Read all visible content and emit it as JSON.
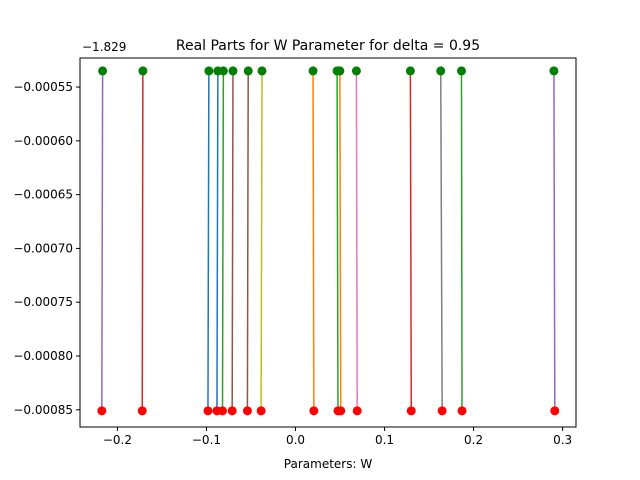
{
  "chart_data": {
    "type": "line",
    "title": "Real Parts for W Parameter for delta = 0.95",
    "xlabel": "Parameters: W",
    "ylabel": "",
    "offset_label": "−1.829",
    "xlim": [
      -0.242,
      0.315
    ],
    "ylim": [
      -0.000866,
      -0.000523
    ],
    "xticks": [
      -0.2,
      -0.1,
      0.0,
      0.1,
      0.2,
      0.3
    ],
    "xtick_labels": [
      "−0.2",
      "−0.1",
      "0.0",
      "0.1",
      "0.2",
      "0.3"
    ],
    "yticks": [
      -0.00055,
      -0.0006,
      -0.00065,
      -0.0007,
      -0.00075,
      -0.0008,
      -0.00085
    ],
    "ytick_labels": [
      "−0.00055",
      "−0.00060",
      "−0.00065",
      "−0.00070",
      "−0.00075",
      "−0.00080",
      "−0.00085"
    ],
    "grid": false,
    "top_marker_color": "#008000",
    "bottom_marker_color": "#ff0000",
    "series": [
      {
        "color": "#9467bd",
        "x": [
          -0.2166,
          -0.2175
        ],
        "y": [
          -0.000535,
          -0.000851
        ]
      },
      {
        "color": "#d62728",
        "x": [
          -0.1714,
          -0.1721
        ],
        "y": [
          -0.000535,
          -0.000851
        ]
      },
      {
        "color": "#1f77b4",
        "x": [
          -0.0973,
          -0.0983
        ],
        "y": [
          -0.000535,
          -0.000851
        ]
      },
      {
        "color": "#1f77b4",
        "x": [
          -0.0872,
          -0.0882
        ],
        "y": [
          -0.000535,
          -0.000851
        ]
      },
      {
        "color": "#2ca02c",
        "x": [
          -0.081,
          -0.082
        ],
        "y": [
          -0.000535,
          -0.000851
        ]
      },
      {
        "color": "#8c564b",
        "x": [
          -0.0702,
          -0.0711
        ],
        "y": [
          -0.000535,
          -0.000851
        ]
      },
      {
        "color": "#8c564b",
        "x": [
          -0.0531,
          -0.054
        ],
        "y": [
          -0.000535,
          -0.000851
        ]
      },
      {
        "color": "#bcbd22",
        "x": [
          -0.0376,
          -0.0386
        ],
        "y": [
          -0.000535,
          -0.000851
        ]
      },
      {
        "color": "#ff7f0e",
        "x": [
          0.0197,
          0.0206
        ],
        "y": [
          -0.000535,
          -0.000851
        ]
      },
      {
        "color": "#2ca02c",
        "x": [
          0.0467,
          0.0477
        ],
        "y": [
          -0.000535,
          -0.000851
        ]
      },
      {
        "color": "#ff7f0e",
        "x": [
          0.0498,
          0.0508
        ],
        "y": [
          -0.000535,
          -0.000851
        ]
      },
      {
        "color": "#e377c2",
        "x": [
          0.0684,
          0.0693
        ],
        "y": [
          -0.000535,
          -0.000851
        ]
      },
      {
        "color": "#d62728",
        "x": [
          0.129,
          0.13
        ],
        "y": [
          -0.000535,
          -0.000851
        ]
      },
      {
        "color": "#7f7f7f",
        "x": [
          0.1631,
          0.1647
        ],
        "y": [
          -0.000535,
          -0.000851
        ]
      },
      {
        "color": "#2ca02c",
        "x": [
          0.1864,
          0.187
        ],
        "y": [
          -0.000535,
          -0.000851
        ]
      },
      {
        "color": "#9467bd",
        "x": [
          0.2902,
          0.2912
        ],
        "y": [
          -0.000535,
          -0.000851
        ]
      }
    ]
  }
}
